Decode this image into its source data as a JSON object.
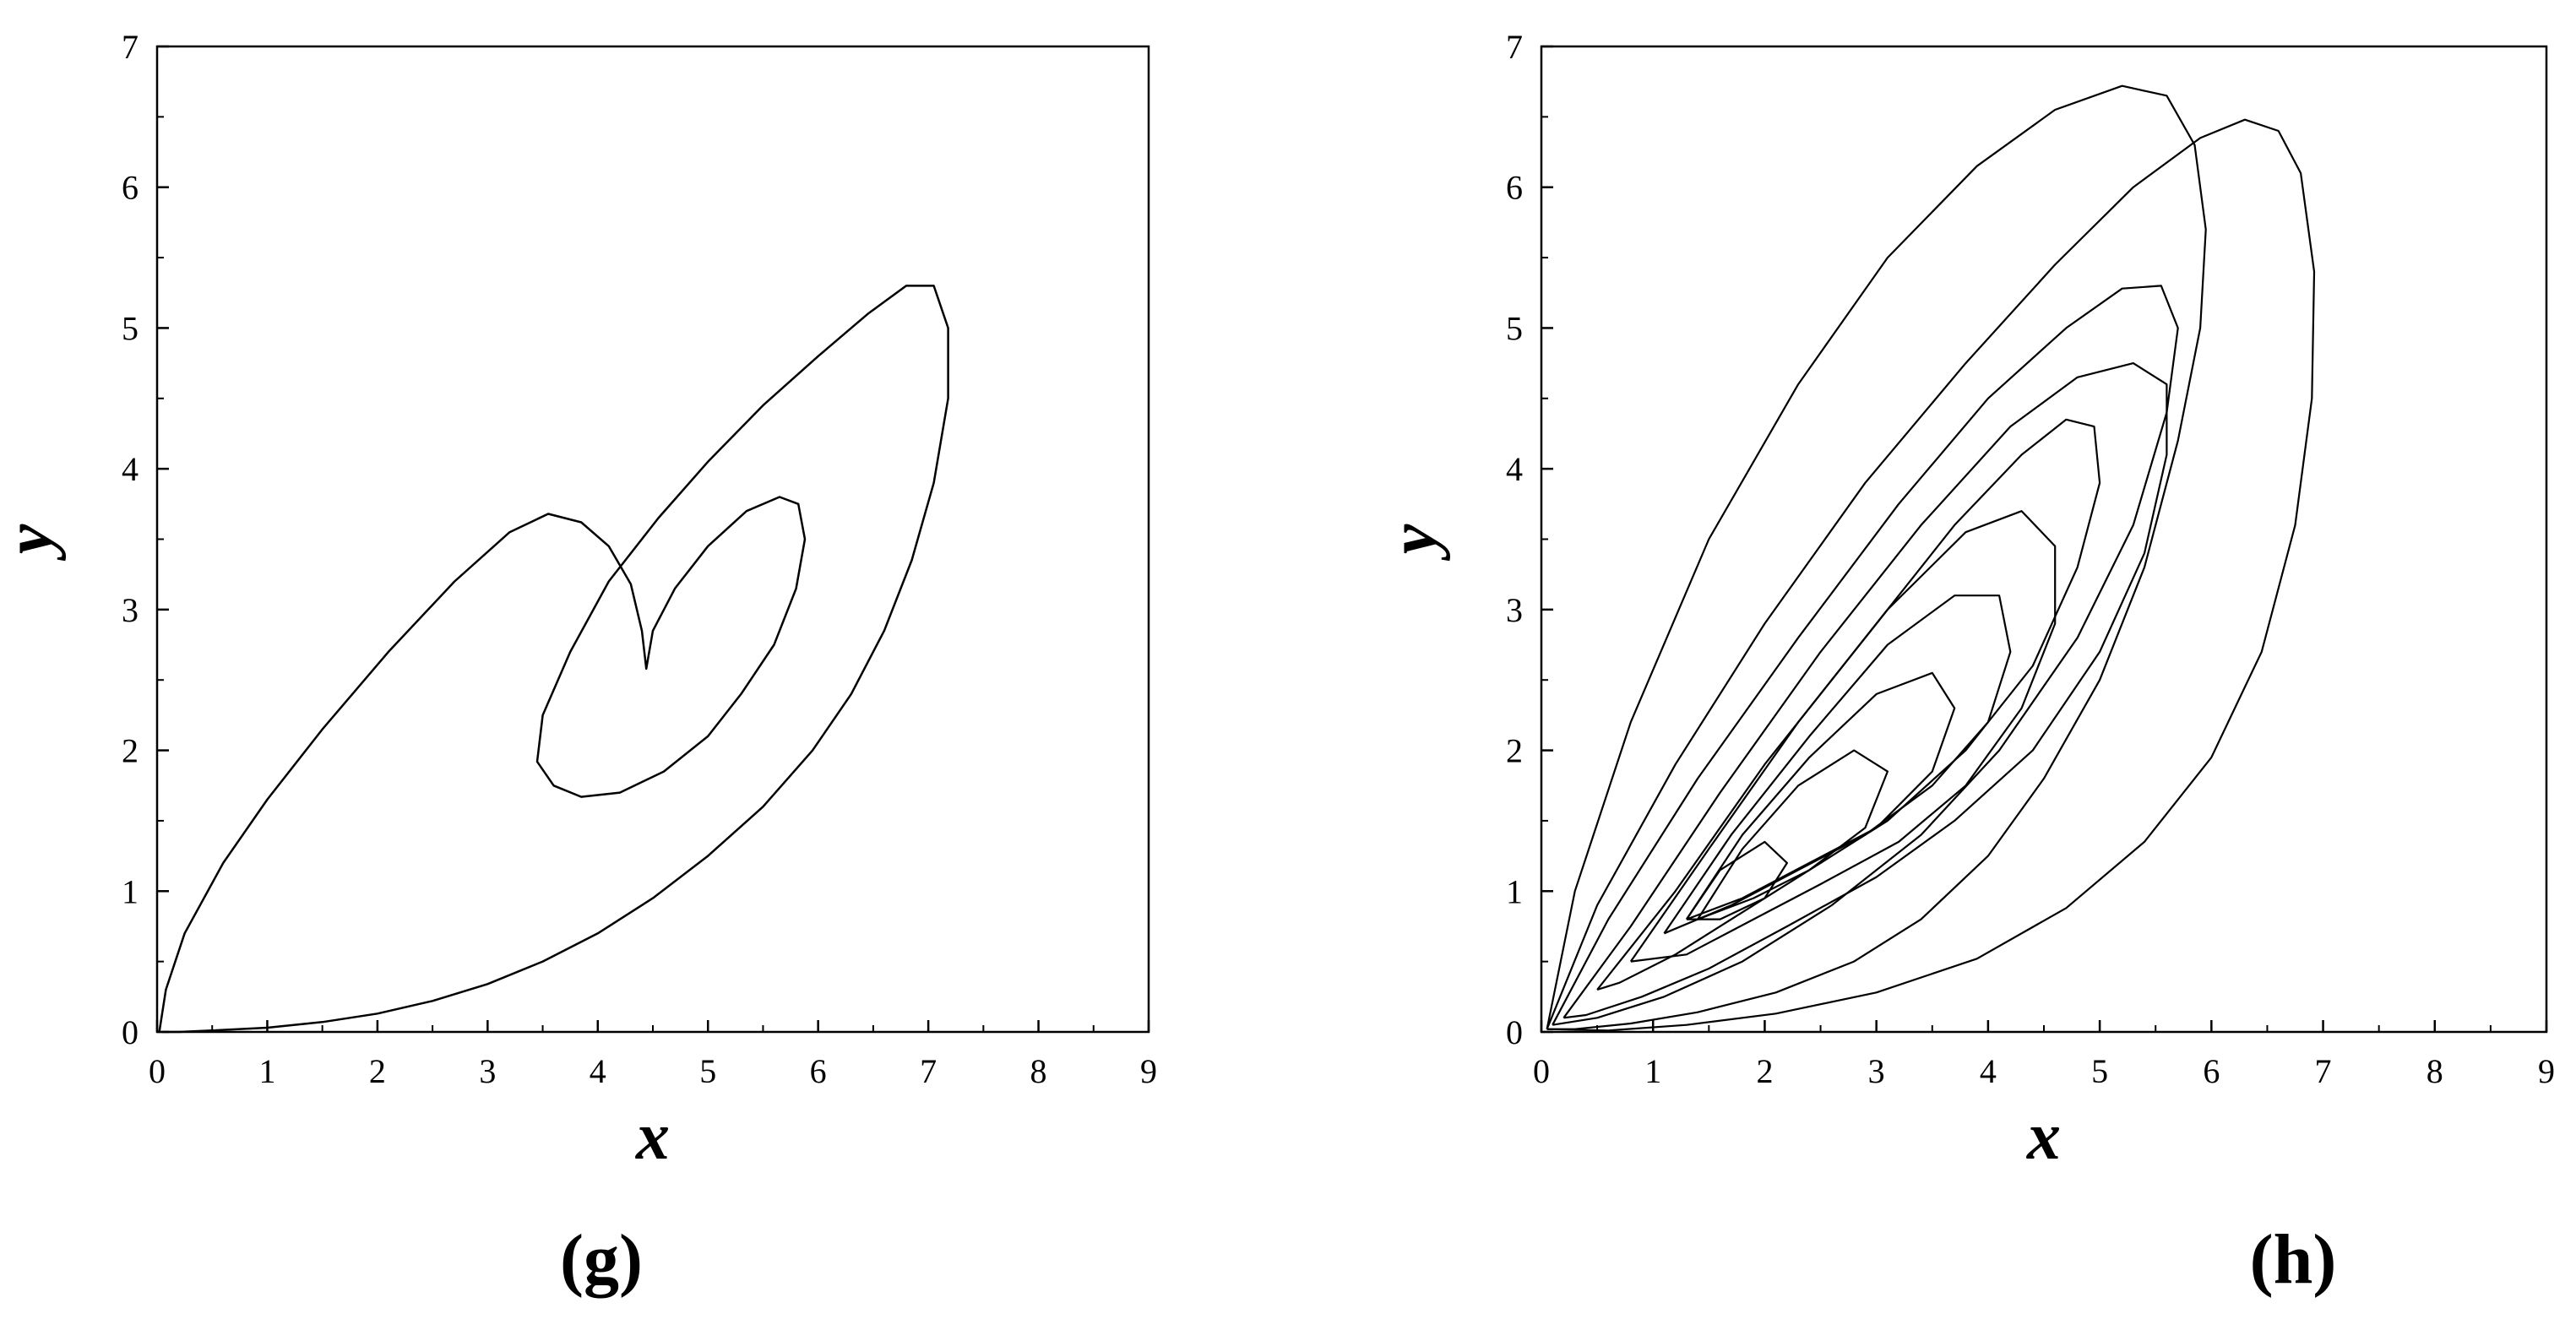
{
  "figure": {
    "panels": [
      {
        "caption": "(g)",
        "xlabel": "x",
        "ylabel": "y"
      },
      {
        "caption": "(h)",
        "xlabel": "x",
        "ylabel": "y"
      }
    ]
  },
  "chart_data": [
    {
      "type": "line",
      "panel": "(g)",
      "xlabel": "x",
      "ylabel": "y",
      "xlim": [
        0,
        9
      ],
      "ylim": [
        0,
        7
      ],
      "xticks": [
        "0",
        "1",
        "2",
        "3",
        "4",
        "5",
        "6",
        "7",
        "8",
        "9"
      ],
      "yticks": [
        "0",
        "1",
        "2",
        "3",
        "4",
        "5",
        "6",
        "7"
      ],
      "grid": false,
      "series": [
        {
          "x": [
            0.02,
            0.08,
            0.25,
            0.6,
            1.0,
            1.5,
            2.1,
            2.7,
            3.2,
            3.55,
            3.85,
            4.1,
            4.3,
            4.4,
            4.44,
            4.5,
            4.7,
            5.0,
            5.35,
            5.65,
            5.82,
            5.88,
            5.8,
            5.6,
            5.3,
            5.0,
            4.6,
            4.2,
            3.85,
            3.6,
            3.45,
            3.5,
            3.75,
            4.1,
            4.55,
            5.0,
            5.5,
            6.0,
            6.45,
            6.8,
            7.05,
            7.18,
            7.18,
            7.05,
            6.85,
            6.6,
            6.3,
            5.95,
            5.5,
            5.0,
            4.5,
            4.0,
            3.5,
            3.0,
            2.5,
            2.0,
            1.5,
            1.0,
            0.5,
            0.2,
            0.05
          ],
          "y": [
            0.0,
            0.3,
            0.7,
            1.2,
            1.65,
            2.15,
            2.7,
            3.2,
            3.55,
            3.68,
            3.62,
            3.45,
            3.18,
            2.85,
            2.58,
            2.85,
            3.15,
            3.45,
            3.7,
            3.8,
            3.75,
            3.5,
            3.15,
            2.75,
            2.4,
            2.1,
            1.85,
            1.7,
            1.67,
            1.75,
            1.92,
            2.25,
            2.7,
            3.2,
            3.65,
            4.05,
            4.45,
            4.8,
            5.1,
            5.3,
            5.3,
            5.0,
            4.5,
            3.9,
            3.35,
            2.85,
            2.4,
            2.0,
            1.6,
            1.25,
            0.95,
            0.7,
            0.5,
            0.34,
            0.22,
            0.13,
            0.07,
            0.03,
            0.01,
            0.0,
            0.0
          ]
        }
      ]
    },
    {
      "type": "line",
      "panel": "(h)",
      "xlabel": "x",
      "ylabel": "y",
      "xlim": [
        0,
        9
      ],
      "ylim": [
        0,
        7
      ],
      "xticks": [
        "0",
        "1",
        "2",
        "3",
        "4",
        "5",
        "6",
        "7",
        "8",
        "9"
      ],
      "yticks": [
        "0",
        "1",
        "2",
        "3",
        "4",
        "5",
        "6",
        "7"
      ],
      "grid": false,
      "series": [
        {
          "x": [
            0.05,
            0.3,
            0.8,
            1.5,
            2.3,
            3.1,
            3.9,
            4.6,
            5.2,
            5.6,
            5.85,
            5.95,
            5.9,
            5.7,
            5.4,
            5.0,
            4.5,
            4.0,
            3.4,
            2.8,
            2.1,
            1.4,
            0.8,
            0.3,
            0.05
          ],
          "y": [
            0.02,
            1.0,
            2.2,
            3.5,
            4.6,
            5.5,
            6.15,
            6.55,
            6.72,
            6.65,
            6.3,
            5.7,
            5.0,
            4.2,
            3.3,
            2.5,
            1.8,
            1.25,
            0.8,
            0.5,
            0.28,
            0.14,
            0.06,
            0.02,
            0.02
          ]
        },
        {
          "x": [
            0.05,
            0.5,
            1.2,
            2.0,
            2.9,
            3.8,
            4.6,
            5.3,
            5.9,
            6.3,
            6.6,
            6.8,
            6.92,
            6.9,
            6.75,
            6.45,
            6.0,
            5.4,
            4.7,
            3.9,
            3.0,
            2.1,
            1.3,
            0.6,
            0.05
          ],
          "y": [
            0.02,
            0.9,
            1.9,
            2.9,
            3.9,
            4.75,
            5.45,
            6.0,
            6.35,
            6.48,
            6.4,
            6.1,
            5.4,
            4.5,
            3.6,
            2.7,
            1.95,
            1.35,
            0.88,
            0.52,
            0.28,
            0.13,
            0.05,
            0.01,
            0.02
          ]
        },
        {
          "x": [
            0.1,
            0.6,
            1.4,
            2.3,
            3.2,
            4.0,
            4.7,
            5.2,
            5.55,
            5.7,
            5.6,
            5.3,
            4.8,
            4.1,
            3.4,
            2.6,
            1.8,
            1.1,
            0.5,
            0.1
          ],
          "y": [
            0.05,
            0.8,
            1.8,
            2.8,
            3.75,
            4.5,
            5.0,
            5.28,
            5.3,
            5.0,
            4.4,
            3.6,
            2.8,
            2.0,
            1.4,
            0.9,
            0.5,
            0.25,
            0.1,
            0.05
          ]
        },
        {
          "x": [
            0.2,
            0.8,
            1.6,
            2.5,
            3.4,
            4.2,
            4.8,
            5.3,
            5.6,
            5.6,
            5.4,
            5.0,
            4.4,
            3.7,
            3.0,
            2.2,
            1.5,
            0.9,
            0.4,
            0.2
          ],
          "y": [
            0.1,
            0.75,
            1.7,
            2.7,
            3.6,
            4.3,
            4.65,
            4.75,
            4.6,
            4.1,
            3.4,
            2.7,
            2.0,
            1.5,
            1.1,
            0.75,
            0.45,
            0.25,
            0.12,
            0.1
          ]
        },
        {
          "x": [
            0.5,
            1.2,
            2.0,
            2.9,
            3.7,
            4.3,
            4.7,
            4.95,
            5.0,
            4.8,
            4.4,
            3.8,
            3.1,
            2.4,
            1.8,
            1.2,
            0.7,
            0.5
          ],
          "y": [
            0.3,
            1.0,
            1.9,
            2.8,
            3.6,
            4.1,
            4.35,
            4.3,
            3.9,
            3.3,
            2.6,
            2.0,
            1.5,
            1.15,
            0.85,
            0.55,
            0.35,
            0.3
          ]
        },
        {
          "x": [
            0.8,
            1.5,
            2.3,
            3.1,
            3.8,
            4.3,
            4.6,
            4.6,
            4.3,
            3.8,
            3.2,
            2.5,
            1.9,
            1.3,
            0.8
          ],
          "y": [
            0.5,
            1.3,
            2.2,
            3.0,
            3.55,
            3.7,
            3.45,
            2.9,
            2.3,
            1.75,
            1.35,
            1.05,
            0.8,
            0.55,
            0.5
          ]
        },
        {
          "x": [
            1.1,
            1.7,
            2.4,
            3.1,
            3.7,
            4.1,
            4.2,
            4.0,
            3.5,
            2.9,
            2.3,
            1.7,
            1.1
          ],
          "y": [
            0.7,
            1.4,
            2.1,
            2.75,
            3.1,
            3.1,
            2.7,
            2.2,
            1.75,
            1.4,
            1.15,
            0.9,
            0.7
          ]
        },
        {
          "x": [
            1.3,
            1.8,
            2.4,
            3.0,
            3.5,
            3.7,
            3.5,
            3.0,
            2.4,
            1.8,
            1.3
          ],
          "y": [
            0.8,
            1.4,
            1.95,
            2.4,
            2.55,
            2.3,
            1.85,
            1.45,
            1.2,
            0.95,
            0.8
          ]
        },
        {
          "x": [
            1.4,
            1.8,
            2.3,
            2.8,
            3.1,
            2.9,
            2.4,
            1.9,
            1.4
          ],
          "y": [
            0.8,
            1.3,
            1.75,
            2.0,
            1.85,
            1.45,
            1.15,
            0.95,
            0.8
          ]
        },
        {
          "x": [
            1.3,
            1.6,
            2.0,
            2.2,
            2.0,
            1.6,
            1.3
          ],
          "y": [
            0.8,
            1.15,
            1.35,
            1.2,
            0.95,
            0.8,
            0.8
          ]
        }
      ]
    }
  ]
}
